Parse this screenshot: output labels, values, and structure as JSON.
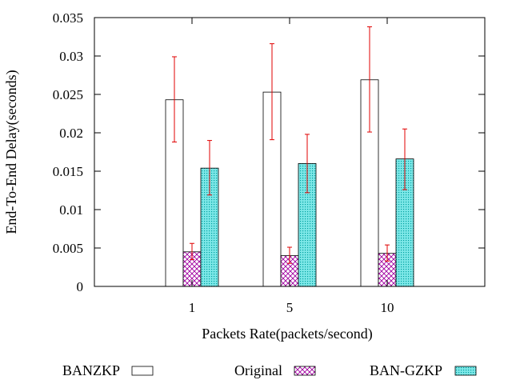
{
  "chart_data": {
    "type": "bar",
    "title": "",
    "xlabel": "Packets Rate(packets/second)",
    "ylabel": "End-To-End Delay(seconds)",
    "ylim": [
      0,
      0.035
    ],
    "yticks": [
      0,
      0.005,
      0.01,
      0.015,
      0.02,
      0.025,
      0.03,
      0.035
    ],
    "ytick_labels": [
      "0",
      "0.005",
      "0.01",
      "0.015",
      "0.02",
      "0.025",
      "0.03",
      "0.035"
    ],
    "categories": [
      "1",
      "5",
      "10"
    ],
    "grid": false,
    "legend_position": "bottom",
    "series": [
      {
        "name": "BANZKP",
        "fill": "none",
        "color": "#000000",
        "values": [
          0.0243,
          0.0253,
          0.0269
        ],
        "error_low": [
          0.0188,
          0.0191,
          0.0201
        ],
        "error_high": [
          0.0299,
          0.0316,
          0.0338
        ]
      },
      {
        "name": "Original",
        "fill": "crosshatch",
        "color": "#a000a0",
        "values": [
          0.0045,
          0.004,
          0.0043
        ],
        "error_low": [
          0.0035,
          0.003,
          0.0033
        ],
        "error_high": [
          0.0056,
          0.0051,
          0.0054
        ]
      },
      {
        "name": "BAN-GZKP",
        "fill": "dots",
        "color": "#00b0b0",
        "background": "#7ee8e8",
        "values": [
          0.0154,
          0.016,
          0.0166
        ],
        "error_low": [
          0.0119,
          0.0122,
          0.0126
        ],
        "error_high": [
          0.019,
          0.0198,
          0.0205
        ]
      }
    ],
    "error_bar_color": "#e00000"
  }
}
